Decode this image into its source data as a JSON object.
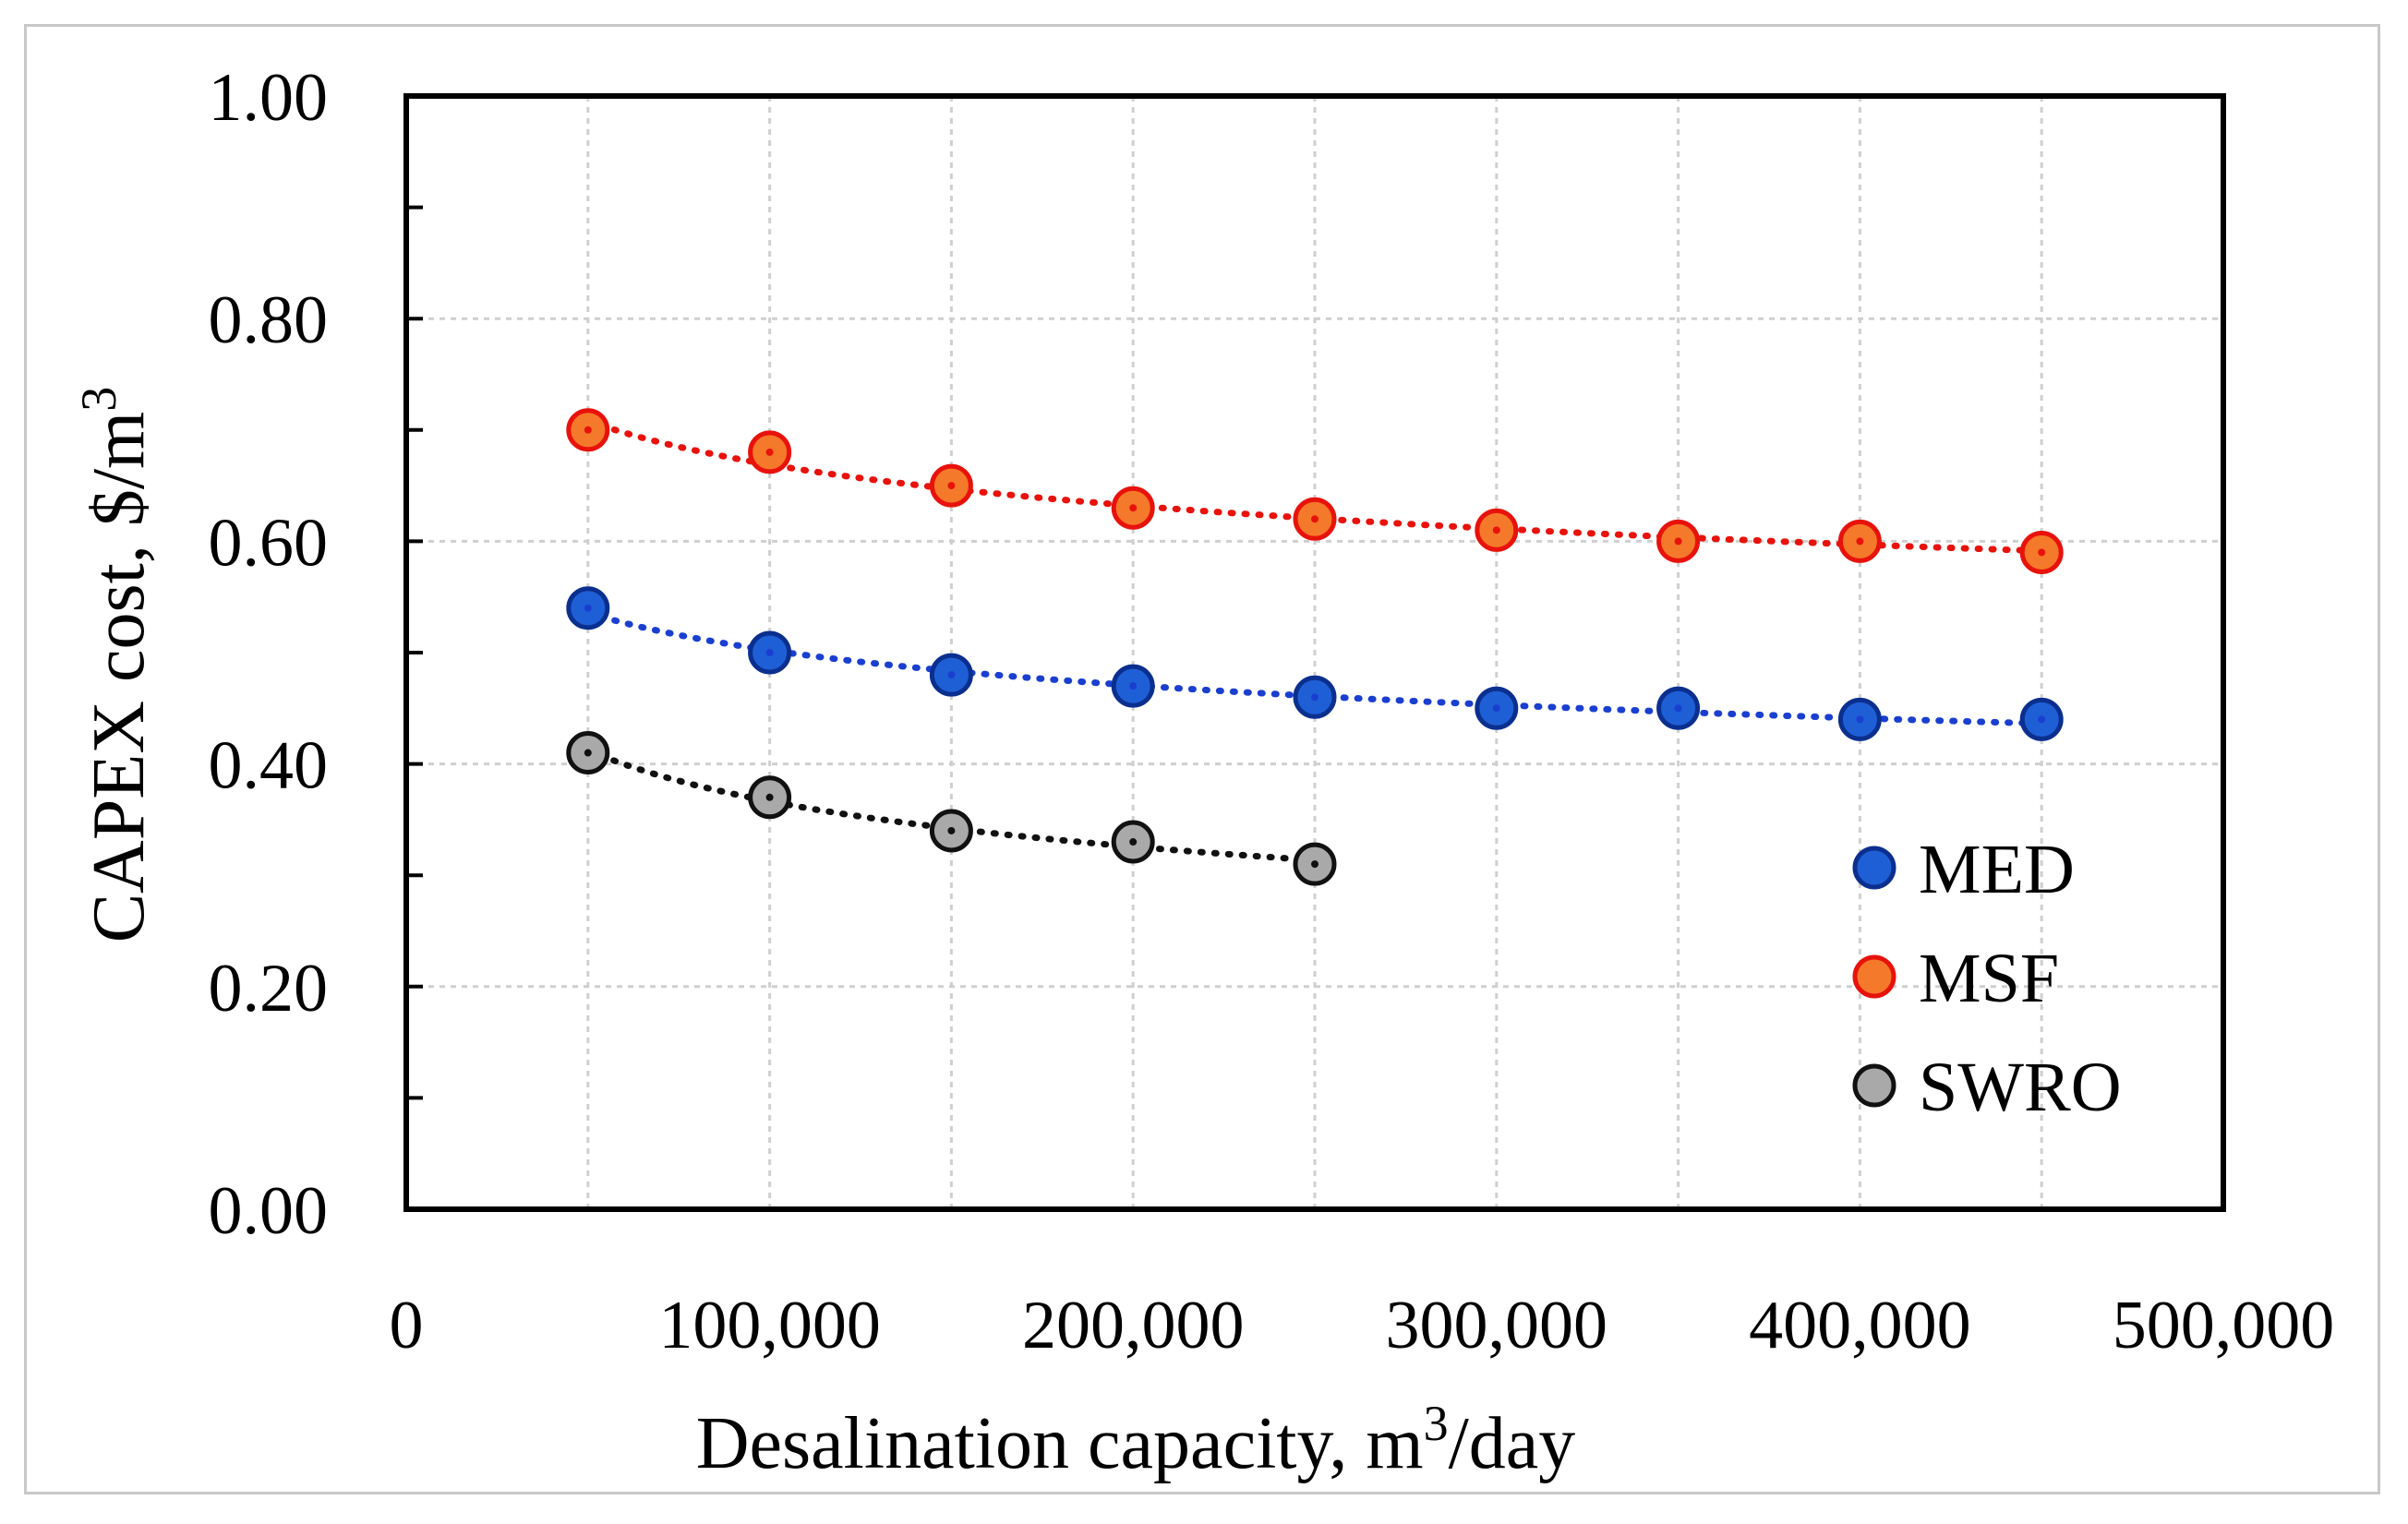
{
  "chart_data": {
    "type": "scatter",
    "title": "",
    "xlabel": "Desalination capacity, m",
    "xlabel_sup": "3",
    "xlabel_suffix": "/day",
    "ylabel": "CAPEX  cost, $/m",
    "ylabel_sup": "3",
    "xlim": [
      0,
      500000
    ],
    "ylim": [
      0,
      1
    ],
    "x_ticks": [
      0,
      100000,
      200000,
      300000,
      400000,
      500000
    ],
    "x_tick_labels": [
      "0",
      "100,000",
      "200,000",
      "300,000",
      "400,000",
      "500,000"
    ],
    "y_ticks": [
      0,
      0.2,
      0.4,
      0.6,
      0.8,
      1.0
    ],
    "y_tick_labels": [
      "0.00",
      "0.20",
      "0.40",
      "0.60",
      "0.80",
      "1.00"
    ],
    "grid": true,
    "legend_position": "bottom-right",
    "series": [
      {
        "name": "MED",
        "color": "#1f5fd6",
        "edge": "#0b2f8f",
        "trend_color": "#1a3fd0",
        "x": [
          50000,
          100000,
          150000,
          200000,
          250000,
          300000,
          350000,
          400000,
          450000
        ],
        "values": [
          0.54,
          0.5,
          0.48,
          0.47,
          0.46,
          0.45,
          0.45,
          0.44,
          0.44
        ]
      },
      {
        "name": "MSF",
        "color": "#f5792a",
        "edge": "#e8120c",
        "trend_color": "#e8120c",
        "x": [
          50000,
          100000,
          150000,
          200000,
          250000,
          300000,
          350000,
          400000,
          450000
        ],
        "values": [
          0.7,
          0.68,
          0.65,
          0.63,
          0.62,
          0.61,
          0.6,
          0.6,
          0.59
        ]
      },
      {
        "name": "SWRO",
        "color": "#a9a9a9",
        "edge": "#111111",
        "trend_color": "#111111",
        "x": [
          50000,
          100000,
          150000,
          200000,
          250000
        ],
        "values": [
          0.41,
          0.37,
          0.34,
          0.33,
          0.31
        ]
      }
    ]
  }
}
